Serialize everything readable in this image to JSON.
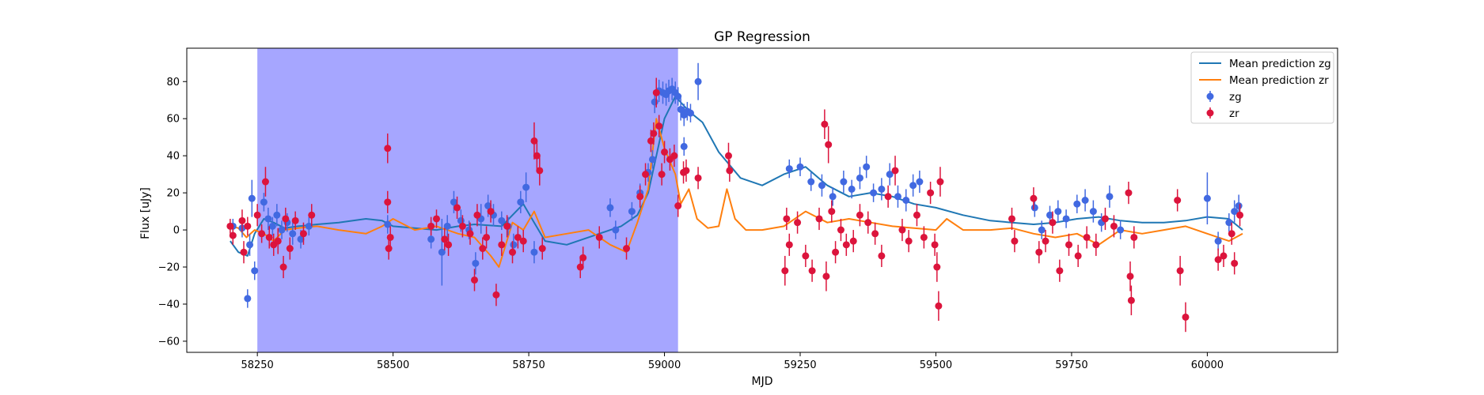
{
  "chart_data": {
    "type": "scatter",
    "title": "GP Regression",
    "xlabel": "MJD",
    "ylabel": "Flux [uJy]",
    "xlim": [
      58120,
      60240
    ],
    "ylim": [
      -66,
      98
    ],
    "x_ticks": [
      58250,
      58500,
      58750,
      59000,
      59250,
      59500,
      59750,
      60000
    ],
    "x_tick_labels": [
      "58250",
      "58500",
      "58750",
      "59000",
      "59250",
      "59500",
      "59750",
      "60000"
    ],
    "y_ticks": [
      -60,
      -40,
      -20,
      0,
      20,
      40,
      60,
      80
    ],
    "y_tick_labels": [
      "−60",
      "−40",
      "−20",
      "0",
      "20",
      "40",
      "60",
      "80"
    ],
    "grid": false,
    "legend": "top-right",
    "shaded_region": {
      "x_start": 58250,
      "x_end": 59025,
      "color": "#a6a6ff"
    },
    "lines": [
      {
        "name": "Mean prediction zg",
        "color": "#1f77b4",
        "x": [
          58200,
          58215,
          58232,
          58245,
          58262,
          58280,
          58300,
          58325,
          58360,
          58400,
          58450,
          58480,
          58500,
          58540,
          58580,
          58620,
          58650,
          58700,
          58740,
          58760,
          58780,
          58820,
          58880,
          58920,
          58950,
          58970,
          58985,
          59000,
          59020,
          59045,
          59070,
          59100,
          59140,
          59180,
          59220,
          59260,
          59300,
          59340,
          59380,
          59420,
          59460,
          59500,
          59550,
          59600,
          59640,
          59680,
          59720,
          59760,
          59800,
          59840,
          59880,
          59920,
          59960,
          60000,
          60040,
          60065
        ],
        "y": [
          -6,
          -12,
          -14,
          -2,
          6,
          4,
          1,
          2,
          3,
          4,
          6,
          5,
          2,
          1,
          0,
          2,
          3,
          2,
          14,
          4,
          -6,
          -8,
          -2,
          2,
          8,
          20,
          40,
          60,
          72,
          64,
          58,
          42,
          28,
          24,
          30,
          34,
          24,
          18,
          20,
          18,
          14,
          12,
          8,
          5,
          4,
          3,
          4,
          6,
          7,
          5,
          4,
          4,
          5,
          7,
          6,
          0
        ]
      },
      {
        "name": "Mean prediction zr",
        "color": "#ff7f0e",
        "x": [
          58200,
          58215,
          58230,
          58245,
          58262,
          58280,
          58300,
          58325,
          58360,
          58400,
          58450,
          58480,
          58500,
          58540,
          58580,
          58620,
          58650,
          58680,
          58695,
          58720,
          58740,
          58760,
          58780,
          58820,
          58860,
          58900,
          58930,
          58950,
          58970,
          58985,
          59000,
          59020,
          59030,
          59045,
          59060,
          59080,
          59100,
          59115,
          59130,
          59150,
          59180,
          59220,
          59260,
          59300,
          59340,
          59380,
          59420,
          59460,
          59500,
          59520,
          59550,
          59600,
          59640,
          59680,
          59720,
          59760,
          59800,
          59840,
          59880,
          59920,
          59960,
          60000,
          60040,
          60065
        ],
        "y": [
          2,
          1,
          -4,
          0,
          -2,
          -6,
          0,
          1,
          2,
          0,
          -2,
          2,
          6,
          0,
          2,
          -2,
          -4,
          -14,
          -20,
          4,
          0,
          10,
          -4,
          -2,
          0,
          -8,
          -12,
          4,
          22,
          60,
          44,
          30,
          14,
          22,
          6,
          1,
          2,
          22,
          6,
          0,
          0,
          2,
          10,
          4,
          6,
          4,
          2,
          1,
          0,
          6,
          0,
          0,
          1,
          -2,
          -4,
          -2,
          -8,
          0,
          -2,
          0,
          2,
          -2,
          -6,
          -2
        ]
      }
    ],
    "series": [
      {
        "name": "zg",
        "color": "#4169e1",
        "points": [
          [
            58205,
            2,
            4
          ],
          [
            58222,
            1,
            5
          ],
          [
            58232,
            -37,
            5
          ],
          [
            58236,
            -8,
            6
          ],
          [
            58240,
            17,
            10
          ],
          [
            58245,
            -22,
            5
          ],
          [
            58262,
            15,
            5
          ],
          [
            58270,
            6,
            6
          ],
          [
            58278,
            2,
            5
          ],
          [
            58286,
            8,
            6
          ],
          [
            58295,
            0,
            5
          ],
          [
            58305,
            4,
            5
          ],
          [
            58315,
            -2,
            6
          ],
          [
            58330,
            -5,
            5
          ],
          [
            58345,
            2,
            5
          ],
          [
            58490,
            3,
            5
          ],
          [
            58570,
            -5,
            5
          ],
          [
            58590,
            -12,
            18
          ],
          [
            58600,
            2,
            6
          ],
          [
            58612,
            15,
            6
          ],
          [
            58625,
            5,
            6
          ],
          [
            58640,
            0,
            5
          ],
          [
            58652,
            -18,
            6
          ],
          [
            58662,
            6,
            8
          ],
          [
            58675,
            13,
            6
          ],
          [
            58685,
            8,
            6
          ],
          [
            58700,
            5,
            5
          ],
          [
            58712,
            2,
            5
          ],
          [
            58722,
            -8,
            6
          ],
          [
            58735,
            15,
            6
          ],
          [
            58745,
            23,
            8
          ],
          [
            58760,
            -12,
            6
          ],
          [
            58900,
            12,
            5
          ],
          [
            58910,
            0,
            5
          ],
          [
            58940,
            10,
            5
          ],
          [
            58955,
            20,
            5
          ],
          [
            58970,
            31,
            5
          ],
          [
            58978,
            38,
            5
          ],
          [
            58982,
            69,
            6
          ],
          [
            58990,
            75,
            6
          ],
          [
            58997,
            74,
            6
          ],
          [
            59003,
            73,
            6
          ],
          [
            59008,
            75,
            6
          ],
          [
            59014,
            76,
            6
          ],
          [
            59020,
            74,
            6
          ],
          [
            59025,
            72,
            5
          ],
          [
            59030,
            65,
            6
          ],
          [
            59036,
            62,
            6
          ],
          [
            59042,
            64,
            5
          ],
          [
            59048,
            63,
            5
          ],
          [
            59036,
            45,
            5
          ],
          [
            59062,
            80,
            10
          ],
          [
            59230,
            33,
            5
          ],
          [
            59250,
            34,
            5
          ],
          [
            59270,
            26,
            5
          ],
          [
            59290,
            24,
            6
          ],
          [
            59310,
            18,
            5
          ],
          [
            59330,
            26,
            6
          ],
          [
            59345,
            22,
            5
          ],
          [
            59360,
            28,
            6
          ],
          [
            59372,
            34,
            6
          ],
          [
            59385,
            20,
            5
          ],
          [
            59400,
            22,
            6
          ],
          [
            59415,
            30,
            6
          ],
          [
            59430,
            18,
            6
          ],
          [
            59445,
            16,
            6
          ],
          [
            59458,
            24,
            6
          ],
          [
            59470,
            26,
            6
          ],
          [
            59682,
            12,
            5
          ],
          [
            59695,
            0,
            5
          ],
          [
            59710,
            8,
            5
          ],
          [
            59725,
            10,
            6
          ],
          [
            59740,
            6,
            5
          ],
          [
            59760,
            14,
            5
          ],
          [
            59775,
            16,
            6
          ],
          [
            59790,
            10,
            6
          ],
          [
            59805,
            4,
            5
          ],
          [
            59820,
            18,
            6
          ],
          [
            59840,
            0,
            5
          ],
          [
            60000,
            17,
            14
          ],
          [
            60020,
            -6,
            5
          ],
          [
            60040,
            4,
            5
          ],
          [
            60050,
            10,
            6
          ],
          [
            60058,
            13,
            6
          ]
        ]
      },
      {
        "name": "zr",
        "color": "#dc143c",
        "points": [
          [
            58200,
            2,
            4
          ],
          [
            58205,
            -3,
            5
          ],
          [
            58222,
            5,
            6
          ],
          [
            58225,
            -12,
            6
          ],
          [
            58232,
            2,
            5
          ],
          [
            58250,
            8,
            6
          ],
          [
            58258,
            -2,
            5
          ],
          [
            58265,
            26,
            8
          ],
          [
            58272,
            -4,
            6
          ],
          [
            58280,
            -8,
            6
          ],
          [
            58288,
            -6,
            7
          ],
          [
            58298,
            -20,
            6
          ],
          [
            58302,
            6,
            6
          ],
          [
            58310,
            -10,
            6
          ],
          [
            58320,
            5,
            5
          ],
          [
            58335,
            -2,
            6
          ],
          [
            58350,
            8,
            6
          ],
          [
            58490,
            44,
            8
          ],
          [
            58490,
            15,
            6
          ],
          [
            58492,
            -10,
            6
          ],
          [
            58495,
            -4,
            6
          ],
          [
            58570,
            2,
            5
          ],
          [
            58580,
            6,
            5
          ],
          [
            58595,
            -5,
            6
          ],
          [
            58602,
            -8,
            6
          ],
          [
            58618,
            12,
            6
          ],
          [
            58628,
            2,
            6
          ],
          [
            58642,
            -2,
            6
          ],
          [
            58650,
            -27,
            6
          ],
          [
            58655,
            8,
            6
          ],
          [
            58665,
            -10,
            6
          ],
          [
            58672,
            -4,
            6
          ],
          [
            58680,
            10,
            6
          ],
          [
            58690,
            -35,
            6
          ],
          [
            58700,
            -8,
            6
          ],
          [
            58710,
            2,
            6
          ],
          [
            58720,
            -12,
            6
          ],
          [
            58730,
            -4,
            6
          ],
          [
            58740,
            -6,
            6
          ],
          [
            58760,
            48,
            10
          ],
          [
            58765,
            40,
            8
          ],
          [
            58770,
            32,
            8
          ],
          [
            58775,
            -10,
            6
          ],
          [
            58845,
            -20,
            6
          ],
          [
            58850,
            -15,
            6
          ],
          [
            58880,
            -4,
            6
          ],
          [
            58930,
            -10,
            6
          ],
          [
            58955,
            18,
            6
          ],
          [
            58965,
            30,
            6
          ],
          [
            58975,
            48,
            6
          ],
          [
            58980,
            52,
            6
          ],
          [
            58985,
            74,
            8
          ],
          [
            58990,
            56,
            6
          ],
          [
            58995,
            30,
            6
          ],
          [
            59000,
            42,
            6
          ],
          [
            59010,
            38,
            6
          ],
          [
            59018,
            40,
            6
          ],
          [
            59025,
            13,
            6
          ],
          [
            59035,
            31,
            6
          ],
          [
            59040,
            32,
            6
          ],
          [
            59062,
            28,
            6
          ],
          [
            59118,
            40,
            7
          ],
          [
            59120,
            32,
            6
          ],
          [
            59222,
            -22,
            8
          ],
          [
            59225,
            6,
            6
          ],
          [
            59230,
            -8,
            6
          ],
          [
            59245,
            4,
            6
          ],
          [
            59260,
            -14,
            6
          ],
          [
            59272,
            -22,
            6
          ],
          [
            59285,
            6,
            6
          ],
          [
            59295,
            57,
            8
          ],
          [
            59298,
            -25,
            8
          ],
          [
            59302,
            46,
            10
          ],
          [
            59308,
            10,
            6
          ],
          [
            59315,
            -12,
            6
          ],
          [
            59325,
            0,
            6
          ],
          [
            59335,
            -8,
            6
          ],
          [
            59348,
            -6,
            6
          ],
          [
            59360,
            8,
            6
          ],
          [
            59375,
            4,
            6
          ],
          [
            59388,
            -2,
            6
          ],
          [
            59400,
            -14,
            6
          ],
          [
            59412,
            18,
            6
          ],
          [
            59425,
            32,
            8
          ],
          [
            59438,
            0,
            6
          ],
          [
            59450,
            -6,
            6
          ],
          [
            59465,
            8,
            6
          ],
          [
            59478,
            -4,
            6
          ],
          [
            59490,
            20,
            6
          ],
          [
            59498,
            -8,
            6
          ],
          [
            59502,
            -20,
            8
          ],
          [
            59505,
            -41,
            8
          ],
          [
            59508,
            26,
            8
          ],
          [
            59640,
            6,
            6
          ],
          [
            59645,
            -6,
            6
          ],
          [
            59680,
            17,
            6
          ],
          [
            59690,
            -12,
            6
          ],
          [
            59702,
            -6,
            6
          ],
          [
            59715,
            4,
            6
          ],
          [
            59728,
            -22,
            6
          ],
          [
            59745,
            -8,
            6
          ],
          [
            59762,
            -14,
            6
          ],
          [
            59778,
            -4,
            6
          ],
          [
            59795,
            -8,
            6
          ],
          [
            59812,
            6,
            6
          ],
          [
            59828,
            2,
            6
          ],
          [
            59855,
            20,
            6
          ],
          [
            59858,
            -25,
            8
          ],
          [
            59860,
            -38,
            8
          ],
          [
            59865,
            -4,
            6
          ],
          [
            59945,
            16,
            6
          ],
          [
            59950,
            -22,
            8
          ],
          [
            59960,
            -47,
            8
          ],
          [
            60020,
            -16,
            6
          ],
          [
            60030,
            -14,
            6
          ],
          [
            60045,
            -2,
            6
          ],
          [
            60050,
            -18,
            6
          ],
          [
            60060,
            8,
            6
          ]
        ]
      }
    ]
  }
}
